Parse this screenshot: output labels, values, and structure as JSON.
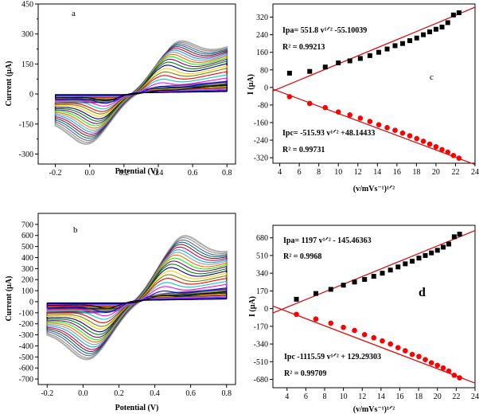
{
  "chart_data": [
    {
      "id": "a",
      "type": "line",
      "panel_label": "a",
      "xlabel": "Potential (V)",
      "ylabel": "Current (µA)",
      "xlim": [
        -0.3,
        0.85
      ],
      "ylim": [
        -350,
        450
      ],
      "xticks": [
        "-0.2",
        "0.0",
        "0.2",
        "0.4",
        "0.6",
        "0.8"
      ],
      "yticks": [
        "-300",
        "-150",
        "0",
        "150",
        "300",
        "450"
      ],
      "yticks_minor": [
        "-225",
        "-75",
        "75",
        "225",
        "375"
      ],
      "cv": {
        "curve_count": 20,
        "e_start": -0.2,
        "e_end": 0.8,
        "ox_peak_e": 0.38,
        "red_peak_e": 0.11,
        "ox_peak_i": [
          20,
          45,
          68,
          90,
          112,
          133,
          153,
          172,
          189,
          205,
          219,
          231,
          242,
          252,
          260,
          268,
          275,
          281,
          286,
          291
        ],
        "red_peak_i": [
          -45,
          -62,
          -80,
          -98,
          -115,
          -130,
          -145,
          -160,
          -174,
          -188,
          -201,
          -214,
          -226,
          -237,
          -248,
          -259,
          -270,
          -281,
          -291,
          -300
        ],
        "end_current": [
          55,
          75,
          95,
          115,
          135,
          155,
          170,
          185,
          200,
          212,
          222,
          232,
          240,
          248,
          255,
          262,
          268,
          273,
          278,
          282
        ]
      }
    },
    {
      "id": "b",
      "type": "line",
      "panel_label": "b",
      "xlabel": "Potential (V)",
      "ylabel": "Current (µA)",
      "xlim": [
        -0.25,
        0.85
      ],
      "ylim": [
        -750,
        800
      ],
      "xticks": [
        "-0.2",
        "0.0",
        "0.2",
        "0.4",
        "0.6",
        "0.8"
      ],
      "yticks": [
        "-750",
        "-650",
        "-550",
        "-450",
        "-350",
        "-250",
        "-150",
        "-50",
        "50",
        "150",
        "250",
        "350",
        "450",
        "550",
        "650",
        "750"
      ],
      "ytick_labels": [
        "-700",
        "-600",
        "-500",
        "-400",
        "-300",
        "-200",
        "-100",
        "0",
        "100",
        "200",
        "300",
        "400",
        "500",
        "600",
        "700"
      ],
      "cv": {
        "curve_count": 20,
        "e_start": -0.2,
        "e_end": 0.8,
        "ox_peak_e": 0.42,
        "red_peak_e": 0.15,
        "ox_peak_i": [
          70,
          120,
          170,
          215,
          260,
          300,
          340,
          375,
          410,
          440,
          470,
          500,
          525,
          550,
          575,
          600,
          620,
          640,
          660,
          675
        ],
        "red_peak_i": [
          -80,
          -130,
          -170,
          -210,
          -250,
          -290,
          -320,
          -350,
          -380,
          -410,
          -435,
          -460,
          -485,
          -510,
          -535,
          -555,
          -575,
          -595,
          -615,
          -630
        ],
        "end_current": [
          110,
          150,
          190,
          225,
          260,
          290,
          320,
          345,
          370,
          395,
          415,
          435,
          455,
          470,
          485,
          500,
          510,
          520,
          530,
          540
        ]
      }
    },
    {
      "id": "c",
      "type": "scatter",
      "panel_label": "c",
      "xlabel": "(v/mVs⁻¹)¹ᐟ²",
      "ylabel": "I (µA)",
      "xlim": [
        3.3,
        24
      ],
      "ylim": [
        -345,
        380
      ],
      "xticks": [
        "4",
        "6",
        "8",
        "10",
        "12",
        "14",
        "16",
        "18",
        "20",
        "22",
        "24"
      ],
      "yticks": [
        "-320",
        "-240",
        "-160",
        "-80",
        "0",
        "80",
        "160",
        "240",
        "320"
      ],
      "x": [
        5.0,
        7.07,
        8.66,
        10.0,
        11.18,
        12.25,
        13.23,
        14.14,
        15.0,
        15.81,
        16.58,
        17.32,
        18.03,
        18.71,
        19.36,
        20.0,
        20.62,
        21.21,
        21.79,
        22.36
      ],
      "series": [
        {
          "name": "Ipa",
          "marker": "square",
          "values": [
            65,
            73,
            93,
            112,
            121,
            132,
            145,
            160,
            175,
            190,
            200,
            213,
            225,
            240,
            253,
            265,
            275,
            295,
            330,
            340
          ]
        },
        {
          "name": "Ipc",
          "marker": "circle",
          "values": [
            -42,
            -73,
            -92,
            -112,
            -125,
            -140,
            -155,
            -170,
            -183,
            -195,
            -208,
            -220,
            -233,
            -245,
            -258,
            -270,
            -283,
            -295,
            -310,
            -322
          ]
        }
      ],
      "fits": [
        {
          "slope": 18.42,
          "intercept": -77.0
        },
        {
          "slope": -16.59,
          "intercept": 47.0
        }
      ],
      "annotations": {
        "eq1": "Ipa= 551.8 v¹ᐟ² -55.10039",
        "r2_1": "R² = 0.99213",
        "eq2": "Ipc= -515.93 v¹ᐟ² +48.14433",
        "r2_2": "R² = 0.99731"
      }
    },
    {
      "id": "d",
      "type": "scatter",
      "panel_label": "d",
      "xlabel": "(v/mVs⁻¹)¹ᐟ²",
      "ylabel": "I (µA)",
      "xlim": [
        2.5,
        24
      ],
      "ylim": [
        -760,
        800
      ],
      "xticks": [
        "4",
        "6",
        "8",
        "10",
        "12",
        "14",
        "16",
        "18",
        "20",
        "22",
        "24"
      ],
      "yticks": [
        "-680",
        "-510",
        "-340",
        "-170",
        "0",
        "170",
        "340",
        "510",
        "680"
      ],
      "x": [
        5.0,
        7.07,
        8.66,
        10.0,
        11.18,
        12.25,
        13.23,
        14.14,
        15.0,
        15.81,
        16.58,
        17.32,
        18.03,
        18.71,
        19.36,
        20.0,
        20.62,
        21.21,
        21.79,
        22.36
      ],
      "series": [
        {
          "name": "Ipa",
          "marker": "square",
          "values": [
            90,
            145,
            185,
            225,
            255,
            280,
            310,
            340,
            370,
            400,
            430,
            455,
            485,
            510,
            535,
            560,
            590,
            620,
            690,
            715
          ]
        },
        {
          "name": "Ipc",
          "marker": "circle",
          "values": [
            -55,
            -100,
            -140,
            -180,
            -210,
            -250,
            -280,
            -310,
            -340,
            -375,
            -405,
            -440,
            -460,
            -490,
            -520,
            -545,
            -570,
            -600,
            -640,
            -665
          ]
        }
      ],
      "fits": [
        {
          "slope": 36.82,
          "intercept": -134.0
        },
        {
          "slope": -34.4,
          "intercept": 110.0
        }
      ],
      "annotations": {
        "eq1": "Ipa= 1197 v¹ᐟ² - 145.46363",
        "r2_1": "R² = 0.9968",
        "eq2": "Ipc -1115.59 v¹ᐟ² + 129.29303",
        "r2_2": "R² = 0.99709"
      }
    }
  ],
  "palette": [
    "#000000",
    "#0000ff",
    "#ff00ff",
    "#00cccc",
    "#ff0000",
    "#808000",
    "#ffcc00",
    "#000080",
    "#008000",
    "#800080",
    "#00ff00",
    "#ff6600",
    "#999999",
    "#00aaff",
    "#cc0066",
    "#663300",
    "#0066cc",
    "#666666",
    "#909090",
    "#b0b0b0"
  ],
  "fit_color": "#e00000",
  "point_color_anodic": "#000000",
  "point_color_cathodic": "#ff0000"
}
